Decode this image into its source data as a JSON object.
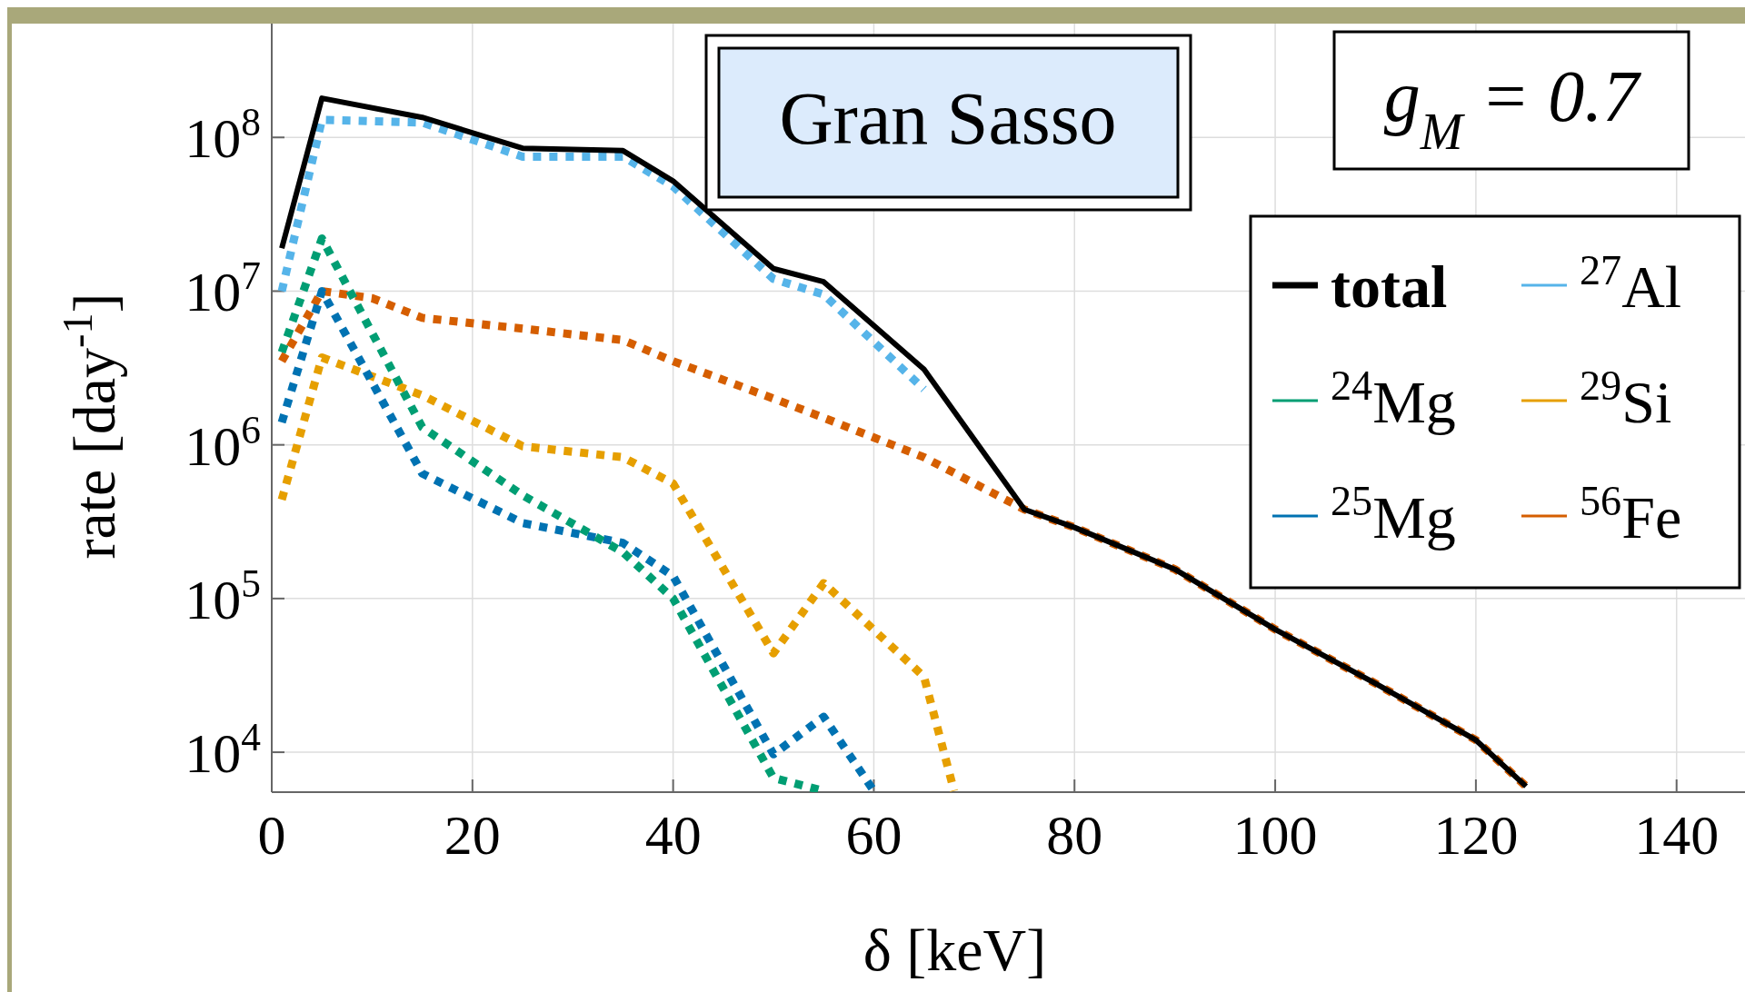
{
  "chart_data": {
    "type": "line",
    "xlabel": "δ [keV]",
    "ylabel": "rate [day$^{-1}$]",
    "annotations": [
      "Gran Sasso",
      "g$_{M}$ = 0.7"
    ],
    "log": "y",
    "grid": true,
    "legend": "right",
    "xlim": [
      0,
      147
    ],
    "xticks": [
      0,
      20,
      40,
      60,
      80,
      100,
      120,
      140
    ],
    "ylim": [
      5500,
      550000000
    ],
    "yticks": [
      {
        "value": 10000,
        "label": "10$^{4}$"
      },
      {
        "value": 100000,
        "label": "10$^{5}$"
      },
      {
        "value": 1000000,
        "label": "10$^{6}$"
      },
      {
        "value": 10000000,
        "label": "10$^{7}$"
      },
      {
        "value": 100000000,
        "label": "10$^{8}$"
      }
    ],
    "series": [
      {
        "name": "total",
        "color": "#000000",
        "line_style": "solid",
        "x": [
          1,
          5,
          15,
          25,
          35,
          40,
          50,
          55,
          65,
          75,
          80,
          90,
          100,
          110,
          120,
          125
        ],
        "values": [
          19000000,
          180000000,
          135000000,
          85000000,
          82000000,
          52000000,
          14000000,
          11500000,
          3100000,
          380000,
          290000,
          155000,
          63000,
          28000,
          12000,
          6000
        ]
      },
      {
        "name": "$^{24}$Mg",
        "color": "#009e73",
        "line_style": "dotted",
        "x": [
          1,
          5,
          15,
          25,
          35,
          40,
          50,
          55
        ],
        "values": [
          4000000,
          22000000,
          1300000,
          470000,
          200000,
          100000,
          6800,
          5600
        ]
      },
      {
        "name": "$^{25}$Mg",
        "color": "#0072b2",
        "line_style": "dotted",
        "x": [
          1,
          5,
          15,
          25,
          35,
          40,
          50,
          55,
          60
        ],
        "values": [
          1400000,
          10000000,
          650000,
          310000,
          230000,
          140000,
          9700,
          17000,
          5600
        ]
      },
      {
        "name": "$^{27}$Al",
        "color": "#56b4e9",
        "line_style": "dotted",
        "x": [
          1,
          5,
          15,
          25,
          35,
          40,
          50,
          55,
          65
        ],
        "values": [
          10000000,
          130000000,
          125000000,
          75000000,
          75000000,
          48000000,
          12000000,
          9500000,
          2300000
        ]
      },
      {
        "name": "$^{29}$Si",
        "color": "#e69f00",
        "line_style": "dotted",
        "x": [
          1,
          5,
          15,
          25,
          35,
          40,
          50,
          55,
          65,
          68
        ],
        "values": [
          440000,
          3700000,
          2100000,
          980000,
          830000,
          560000,
          44000,
          126000,
          31000,
          5600
        ]
      },
      {
        "name": "$^{56}$Fe",
        "color": "#d55e00",
        "line_style": "dotted",
        "x": [
          1,
          5,
          10,
          15,
          25,
          35,
          40,
          50,
          55,
          65,
          75,
          80,
          90,
          100,
          110,
          120,
          125
        ],
        "values": [
          3500000,
          10000000,
          9000000,
          6700000,
          5700000,
          4800000,
          3500000,
          2000000,
          1500000,
          830000,
          380000,
          290000,
          155000,
          63000,
          28000,
          12000,
          6000
        ]
      }
    ]
  }
}
